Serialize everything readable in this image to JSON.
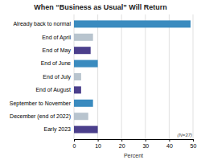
{
  "chart_data": {
    "type": "bar",
    "orientation": "horizontal",
    "title": "When “Business as Usual” Will Return",
    "categories": [
      "Already back to normal",
      "End of April",
      "End of May",
      "End of June",
      "End of July",
      "End of August",
      "September to November",
      "December (end of 2022)",
      "Early 2023"
    ],
    "values": [
      49,
      8,
      7,
      10,
      3,
      3,
      8,
      6,
      10
    ],
    "colors": [
      "#3a8bbf",
      "#b8c4ce",
      "#4b3f8c",
      "#3a8bbf",
      "#b8c4ce",
      "#4b3f8c",
      "#3a8bbf",
      "#b8c4ce",
      "#4b3f8c"
    ],
    "xlabel": "Percent",
    "xlim": [
      0,
      50
    ],
    "xticks": [
      0,
      10,
      20,
      30,
      40,
      50
    ],
    "grid": true,
    "annotation": "(N=37)"
  }
}
